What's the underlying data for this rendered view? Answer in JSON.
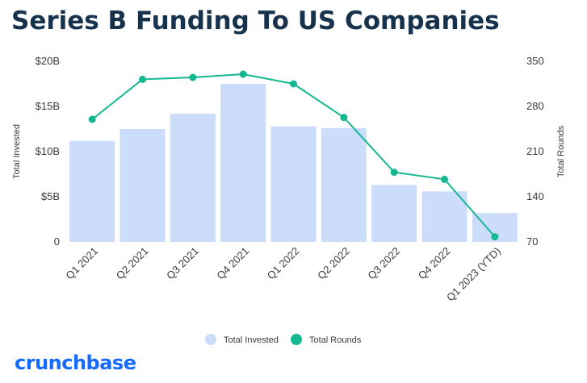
{
  "title": "Series B Funding To US Companies",
  "brand": "crunchbase",
  "colors": {
    "bar": "#ccdcfb",
    "line": "#14b890",
    "title": "#17324d",
    "brand": "#146aff"
  },
  "chart_data": {
    "type": "bar+line",
    "categories": [
      "Q1 2021",
      "Q2 2021",
      "Q3 2021",
      "Q4 2021",
      "Q1 2022",
      "Q2 2022",
      "Q3 2022",
      "Q4 2022",
      "Q1 2023 (YTD)"
    ],
    "series": [
      {
        "name": "Total Invested",
        "type": "bar",
        "axis": "left",
        "values": [
          11.2,
          12.5,
          14.2,
          17.5,
          12.8,
          12.6,
          6.3,
          5.6,
          3.2
        ]
      },
      {
        "name": "Total Rounds",
        "type": "line",
        "axis": "right",
        "values": [
          260,
          322,
          325,
          330,
          315,
          263,
          178,
          167,
          78
        ]
      }
    ],
    "y_left": {
      "label": "Total Invested",
      "ticks": [
        "0",
        "$5B",
        "$10B",
        "$15B",
        "$20B"
      ],
      "tick_values": [
        0,
        5,
        10,
        15,
        20
      ],
      "range": [
        0,
        20
      ]
    },
    "y_right": {
      "label": "Total Rounds",
      "ticks": [
        "70",
        "140",
        "210",
        "280",
        "350"
      ],
      "tick_values": [
        70,
        140,
        210,
        280,
        350
      ],
      "range": [
        70,
        350
      ]
    },
    "grid": false,
    "legend": "bottom-center"
  }
}
